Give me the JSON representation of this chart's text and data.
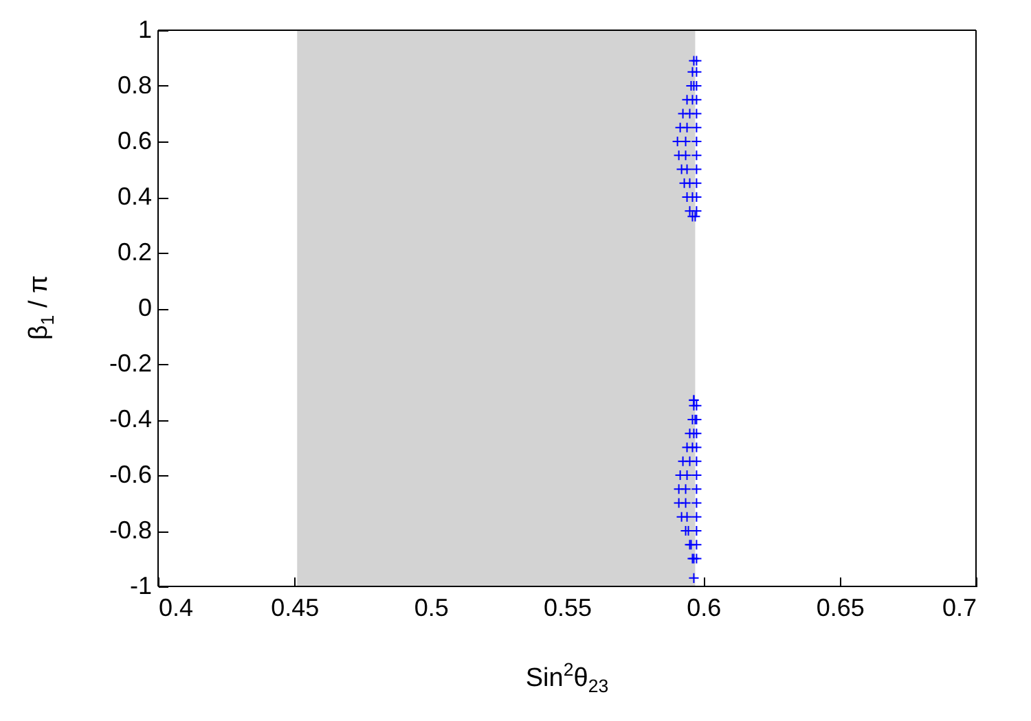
{
  "chart_data": {
    "type": "scatter",
    "xlabel": "Sin$^{2}$θ$_{23}$",
    "ylabel": "β$_{1}$ / π",
    "xlim": [
      0.4,
      0.7
    ],
    "xticks": [
      0.4,
      0.45,
      0.5,
      0.55,
      0.6,
      0.65,
      0.7
    ],
    "ylim": [
      -1,
      1
    ],
    "yticks": [
      -1,
      -0.8,
      -0.6,
      -0.4,
      -0.2,
      0,
      0.2,
      0.4,
      0.6,
      0.8,
      1
    ],
    "grid": false,
    "marker": "cross",
    "bands": [
      {
        "axis": "x",
        "from": 0.451,
        "to": 0.597,
        "color": "#d3d3d3"
      }
    ],
    "series": [
      {
        "color": "#0000ff",
        "x": [
          0.5965,
          0.596,
          0.5955,
          0.594,
          0.5925,
          0.5915,
          0.5905,
          0.591,
          0.592,
          0.593,
          0.594,
          0.595,
          0.596,
          0.5975,
          0.5975,
          0.5975,
          0.5975,
          0.5975,
          0.5975,
          0.5975,
          0.5975,
          0.5975,
          0.5975,
          0.5975,
          0.5975,
          0.597,
          0.5965,
          0.596,
          0.595,
          0.594,
          0.5935,
          0.5935,
          0.594,
          0.595,
          0.596,
          0.5965,
          0.5965,
          0.596,
          0.595,
          0.594,
          0.5925,
          0.5915,
          0.591,
          0.591,
          0.592,
          0.5935,
          0.595,
          0.596,
          0.5965,
          0.5965,
          0.5975,
          0.5975,
          0.5975,
          0.5975,
          0.5975,
          0.5975,
          0.5975,
          0.5975,
          0.5975,
          0.5975,
          0.5975,
          0.5975,
          0.597,
          0.5965,
          0.596,
          0.595,
          0.594,
          0.5935,
          0.5935,
          0.594,
          0.5945,
          0.5955,
          0.5965
        ],
        "values": [
          0.89,
          0.85,
          0.8,
          0.75,
          0.7,
          0.65,
          0.6,
          0.55,
          0.5,
          0.45,
          0.4,
          0.35,
          0.33,
          0.89,
          0.85,
          0.8,
          0.75,
          0.7,
          0.65,
          0.6,
          0.55,
          0.5,
          0.45,
          0.4,
          0.35,
          0.33,
          0.8,
          0.75,
          0.7,
          0.65,
          0.6,
          0.55,
          0.5,
          0.45,
          0.4,
          -0.33,
          -0.35,
          -0.4,
          -0.45,
          -0.5,
          -0.55,
          -0.6,
          -0.65,
          -0.7,
          -0.75,
          -0.8,
          -0.85,
          -0.9,
          -0.97,
          -0.33,
          -0.35,
          -0.4,
          -0.45,
          -0.5,
          -0.55,
          -0.6,
          -0.65,
          -0.7,
          -0.75,
          -0.8,
          -0.85,
          -0.9,
          -0.4,
          -0.45,
          -0.5,
          -0.55,
          -0.6,
          -0.65,
          -0.7,
          -0.75,
          -0.8,
          -0.85,
          -0.9
        ]
      }
    ]
  }
}
